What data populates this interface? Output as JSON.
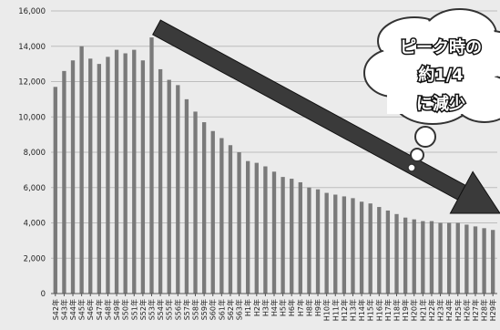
{
  "chart_data": {
    "type": "bar",
    "title": "",
    "xlabel": "",
    "ylabel": "",
    "ylim": [
      0,
      16000
    ],
    "yticks": [
      0,
      2000,
      4000,
      6000,
      8000,
      10000,
      12000,
      14000,
      16000
    ],
    "ytick_labels": [
      "0",
      "2,000",
      "4,000",
      "6,000",
      "8,000",
      "10,000",
      "12,000",
      "14,000",
      "16,000"
    ],
    "grid": true,
    "categories": [
      "S42年",
      "S43年",
      "S44年",
      "S45年",
      "S46年",
      "S47年",
      "S48年",
      "S49年",
      "S50年",
      "S51年",
      "S52年",
      "S53年",
      "S54年",
      "S55年",
      "S56年",
      "S57年",
      "S58年",
      "S59年",
      "S60年",
      "S61年",
      "S62年",
      "S63年",
      "H1年",
      "H2年",
      "H3年",
      "H4年",
      "H5年",
      "H6年",
      "H7年",
      "H8年",
      "H9年",
      "H10年",
      "H11年",
      "H12年",
      "H13年",
      "H14年",
      "H15年",
      "H16年",
      "H17年",
      "H18年",
      "H19年",
      "H20年",
      "H21年",
      "H22年",
      "H23年",
      "H24年",
      "H25年",
      "H26年",
      "H27年",
      "H28年",
      "H29年"
    ],
    "values": [
      11700,
      12600,
      13200,
      14000,
      13300,
      13000,
      13400,
      13800,
      13600,
      13800,
      13200,
      14500,
      12700,
      12100,
      11800,
      11000,
      10300,
      9700,
      9200,
      8800,
      8400,
      8000,
      7500,
      7400,
      7200,
      6900,
      6600,
      6500,
      6300,
      6000,
      5900,
      5700,
      5600,
      5500,
      5400,
      5200,
      5100,
      4900,
      4700,
      4500,
      4300,
      4200,
      4100,
      4100,
      4000,
      4000,
      4000,
      3900,
      3800,
      3700,
      3600
    ],
    "bar_color": "#7a7a7a",
    "annotation": {
      "lines": [
        "ピーク時の",
        "約1/4",
        "に減少"
      ],
      "shape": "thought-cloud",
      "arrow": "downward-diagonal-arrow"
    }
  }
}
